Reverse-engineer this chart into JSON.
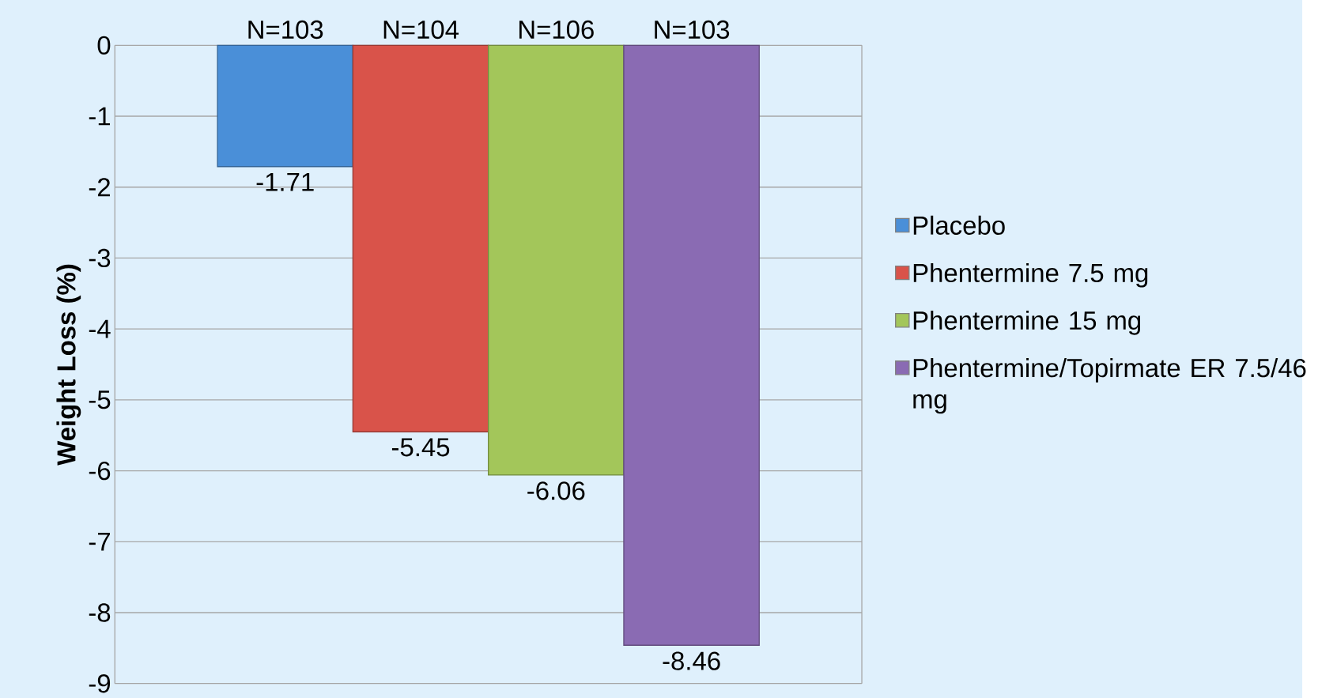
{
  "chart_data": {
    "type": "bar",
    "ylabel": "Weight Loss (%)",
    "categories": [
      null
    ],
    "series": [
      {
        "name": "Placebo",
        "color": "#4a8fd8",
        "values": [
          -1.71
        ]
      },
      {
        "name": "Phentermine 7.5 mg",
        "color": "#d9534a",
        "values": [
          -5.45
        ]
      },
      {
        "name": "Phentermine 15 mg",
        "color": "#a3c65a",
        "values": [
          -6.06
        ]
      },
      {
        "name": "Phentermine/Topirmate ER 7.5/46 mg",
        "color": "#8a6bb3",
        "values": [
          -8.46
        ]
      }
    ],
    "annotations": [
      "N=103",
      "N=104",
      "N=106",
      "N=103"
    ],
    "ylim": [
      -9,
      0
    ],
    "yticks": [
      0,
      -1,
      -2,
      -3,
      -4,
      -5,
      -6,
      -7,
      -8,
      -9
    ],
    "grid": "y",
    "legend": "right",
    "data_labels": true
  }
}
